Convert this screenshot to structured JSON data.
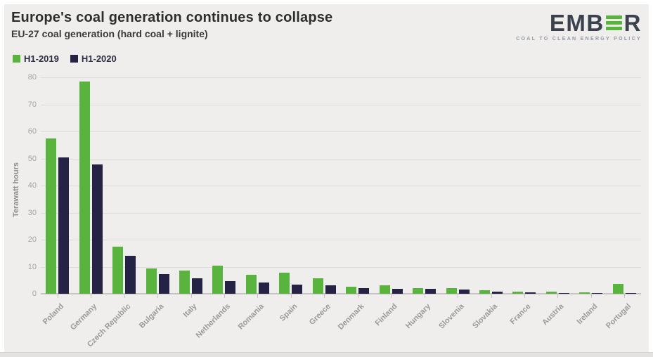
{
  "header": {
    "title": "Europe's coal generation continues to collapse",
    "subtitle": "EU-27 coal generation (hard coal + lignite)"
  },
  "logo": {
    "text_left": "EMB",
    "text_right": "R",
    "e_icon": "three-green-bars-E",
    "tagline": "COAL TO CLEAN ENERGY POLICY"
  },
  "colors": {
    "h1_2019_green": "#58b43c",
    "h1_2020_navy": "#252345",
    "card_background": "#efeeec",
    "gridline": "#dedddb",
    "axis_text": "#9a9a98",
    "logo_dark": "#3c424d"
  },
  "chart_data": {
    "type": "bar",
    "title": "Europe's coal generation continues to collapse",
    "subtitle": "EU-27 coal generation (hard coal + lignite)",
    "xlabel": "",
    "ylabel": "Terawatt hours",
    "ylim": [
      0,
      80
    ],
    "yticks": [
      0,
      10,
      20,
      30,
      40,
      50,
      60,
      70,
      80
    ],
    "grid": true,
    "legend_position": "top-left",
    "categories": [
      "Poland",
      "Germany",
      "Czech Republic",
      "Bulgaria",
      "Italy",
      "Netherlands",
      "Romania",
      "Spain",
      "Greece",
      "Denmark",
      "Finland",
      "Hungary",
      "Slovenia",
      "Slovakia",
      "France",
      "Austria",
      "Ireland",
      "Portugal"
    ],
    "series": [
      {
        "name": "H1-2019",
        "color": "#58b43c",
        "values": [
          57.5,
          78.5,
          17.4,
          9.3,
          8.7,
          10.5,
          6.9,
          7.7,
          5.8,
          2.6,
          3.2,
          2.0,
          2.1,
          1.2,
          0.9,
          0.9,
          0.4,
          3.6
        ]
      },
      {
        "name": "H1-2020",
        "color": "#252345",
        "values": [
          50.5,
          47.7,
          14.0,
          7.4,
          5.7,
          4.8,
          4.1,
          3.4,
          3.0,
          2.2,
          1.9,
          1.7,
          1.6,
          0.7,
          0.4,
          0.3,
          0.2,
          0.2
        ]
      }
    ]
  }
}
